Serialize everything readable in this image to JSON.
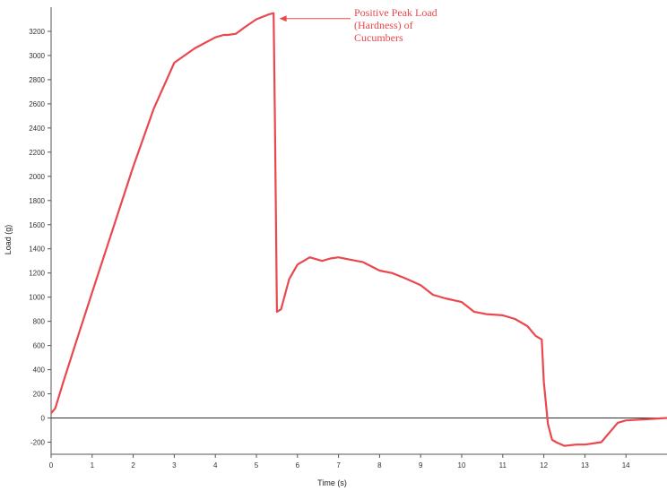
{
  "chart_data": {
    "type": "line",
    "xlabel": "Time (s)",
    "ylabel": "Load (g)",
    "xlim": [
      0,
      15
    ],
    "ylim": [
      -300,
      3400
    ],
    "x_ticks": [
      0,
      1,
      2,
      3,
      4,
      5,
      6,
      7,
      8,
      9,
      10,
      11,
      12,
      13,
      14
    ],
    "y_ticks": [
      -200,
      0,
      200,
      400,
      600,
      800,
      1000,
      1200,
      1400,
      1600,
      1800,
      2000,
      2200,
      2400,
      2600,
      2800,
      3000,
      3200
    ],
    "zero_line": true,
    "grid": false,
    "series": [
      {
        "color": "#e8484e",
        "x": [
          0,
          0.1,
          0.3,
          0.6,
          1.0,
          1.5,
          2.0,
          2.5,
          3.0,
          3.5,
          4.0,
          4.2,
          4.3,
          4.5,
          4.7,
          5.0,
          5.3,
          5.42,
          5.45,
          5.5,
          5.6,
          5.8,
          6.0,
          6.3,
          6.6,
          6.8,
          7.0,
          7.3,
          7.6,
          8.0,
          8.3,
          8.6,
          9.0,
          9.3,
          9.6,
          10.0,
          10.3,
          10.6,
          11.0,
          11.3,
          11.6,
          11.8,
          11.95,
          12.0,
          12.1,
          12.2,
          12.3,
          12.5,
          12.8,
          13.0,
          13.2,
          13.4,
          13.6,
          13.8,
          14.0,
          14.5,
          15.0
        ],
        "y": [
          40,
          80,
          300,
          620,
          1040,
          1560,
          2080,
          2560,
          2940,
          3060,
          3150,
          3170,
          3170,
          3180,
          3230,
          3300,
          3340,
          3350,
          2500,
          880,
          900,
          1150,
          1270,
          1330,
          1300,
          1320,
          1330,
          1310,
          1290,
          1220,
          1200,
          1160,
          1100,
          1020,
          990,
          960,
          880,
          860,
          850,
          820,
          760,
          680,
          650,
          300,
          -50,
          -180,
          -200,
          -230,
          -220,
          -220,
          -210,
          -200,
          -120,
          -40,
          -20,
          -10,
          0
        ]
      }
    ],
    "annotations": [
      {
        "text_lines": [
          "Positive Peak Load",
          "(Hardness) of",
          "Cucumbers"
        ],
        "color": "#e8484e",
        "points_to": {
          "x": 5.45,
          "y": 3350
        }
      }
    ]
  }
}
